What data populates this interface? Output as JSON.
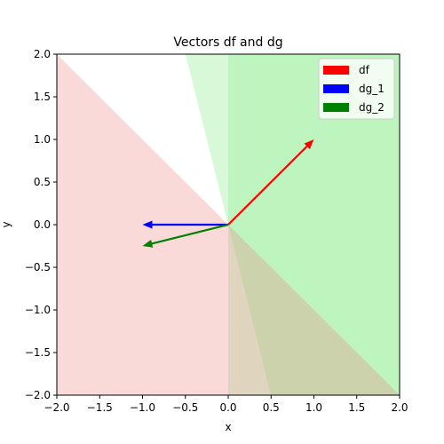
{
  "chart_data": {
    "type": "quiver",
    "title": "Vectors df and dg",
    "xlabel": "x",
    "ylabel": "y",
    "xlim": [
      -2,
      2
    ],
    "ylim": [
      -2,
      2
    ],
    "xticks": [
      "−2.0",
      "−1.5",
      "−1.0",
      "−0.5",
      "0.0",
      "0.5",
      "1.0",
      "1.5",
      "2.0"
    ],
    "yticks": [
      "−2.0",
      "−1.5",
      "−1.0",
      "−0.5",
      "0.0",
      "0.5",
      "1.0",
      "1.5",
      "2.0"
    ],
    "xtick_values": [
      -2,
      -1.5,
      -1,
      -0.5,
      0,
      0.5,
      1,
      1.5,
      2
    ],
    "ytick_values": [
      -2,
      -1.5,
      -1,
      -0.5,
      0,
      0.5,
      1,
      1.5,
      2
    ],
    "grid": false,
    "legend_position": "top-right",
    "vectors": [
      {
        "name": "df",
        "origin": [
          0,
          0
        ],
        "vector": [
          1,
          1
        ],
        "color": "#ff0000"
      },
      {
        "name": "dg_1",
        "origin": [
          0,
          0
        ],
        "vector": [
          -1,
          0
        ],
        "color": "#0000ff"
      },
      {
        "name": "dg_2",
        "origin": [
          0,
          0
        ],
        "vector": [
          -1,
          -0.25
        ],
        "color": "#008000"
      }
    ],
    "regions": [
      {
        "id": "green-halfplane-x",
        "color": "#90ee90",
        "opacity": 0.35,
        "polygon": [
          [
            0,
            -2
          ],
          [
            2,
            -2
          ],
          [
            2,
            2
          ],
          [
            0,
            2
          ]
        ]
      },
      {
        "id": "green-halfplane-slanted",
        "color": "#90ee90",
        "opacity": 0.35,
        "polygon": [
          [
            -0.5,
            2
          ],
          [
            2,
            2
          ],
          [
            2,
            -2
          ],
          [
            0.5,
            -2
          ]
        ]
      },
      {
        "id": "red-halfplane",
        "color": "#f08080",
        "opacity": 0.3,
        "polygon": [
          [
            -2,
            2
          ],
          [
            2,
            -2
          ],
          [
            -2,
            -2
          ]
        ]
      }
    ]
  }
}
